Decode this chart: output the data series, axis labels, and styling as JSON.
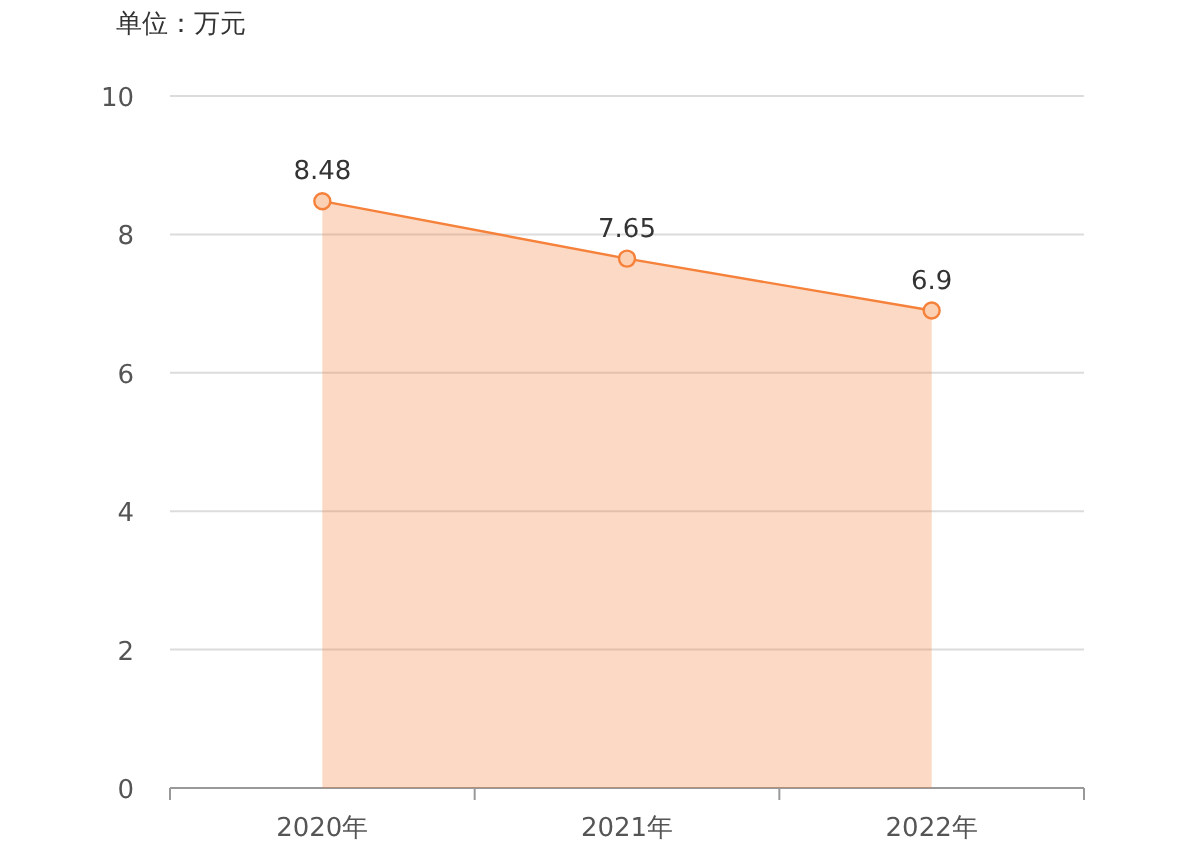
{
  "chart_data": {
    "type": "area",
    "ylabel": "单位：万元",
    "categories": [
      "2020年",
      "2021年",
      "2022年"
    ],
    "values": [
      8.48,
      7.65,
      6.9
    ],
    "color": "#f5813a",
    "ylim": [
      0,
      10
    ],
    "yticks": [
      0,
      2,
      4,
      6,
      8,
      10
    ],
    "grid": "y",
    "marker": "circle",
    "data_labels": true
  }
}
